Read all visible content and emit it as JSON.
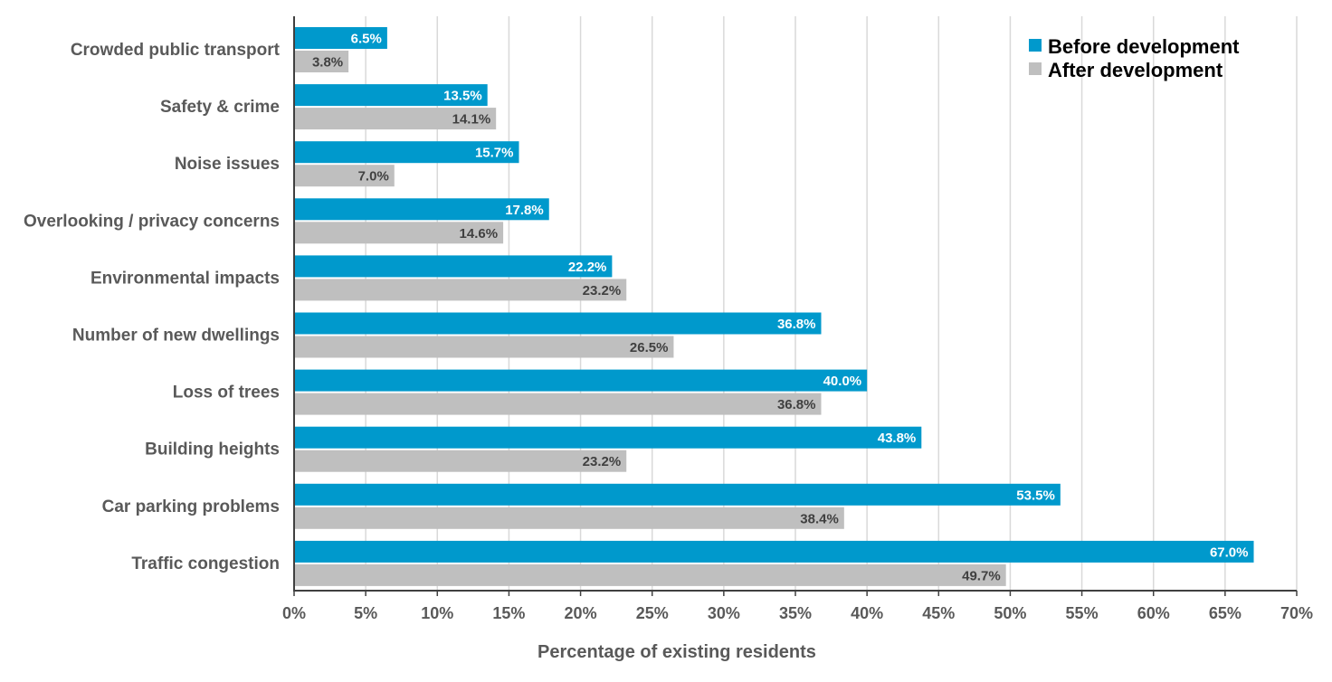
{
  "chart_data": {
    "type": "bar",
    "orientation": "horizontal",
    "title": "",
    "xlabel": "Percentage of existing residents",
    "ylabel": "",
    "xlim": [
      0,
      70
    ],
    "x_ticks": [
      "0%",
      "5%",
      "10%",
      "15%",
      "20%",
      "25%",
      "30%",
      "35%",
      "40%",
      "45%",
      "50%",
      "55%",
      "60%",
      "65%",
      "70%"
    ],
    "grid": "vertical",
    "legend_position": "top-right",
    "categories": [
      "Crowded public transport",
      "Safety & crime",
      "Noise issues",
      "Overlooking / privacy concerns",
      "Environmental impacts",
      "Number of new dwellings",
      "Loss of trees",
      "Building heights",
      "Car parking problems",
      "Traffic congestion"
    ],
    "series": [
      {
        "name": "Before development",
        "color": "#0099CC",
        "label_color": "#ffffff",
        "values": [
          6.5,
          13.5,
          15.7,
          17.8,
          22.2,
          36.8,
          40.0,
          43.8,
          53.5,
          67.0
        ],
        "labels": [
          "6.5%",
          "13.5%",
          "15.7%",
          "17.8%",
          "22.2%",
          "36.8%",
          "40.0%",
          "43.8%",
          "53.5%",
          "67.0%"
        ]
      },
      {
        "name": "After development",
        "color": "#BFBFBF",
        "label_color": "#404040",
        "values": [
          3.8,
          14.1,
          7.0,
          14.6,
          23.2,
          26.5,
          36.8,
          23.2,
          38.4,
          49.7
        ],
        "labels": [
          "3.8%",
          "14.1%",
          "7.0%",
          "14.6%",
          "23.2%",
          "26.5%",
          "36.8%",
          "23.2%",
          "38.4%",
          "49.7%"
        ]
      }
    ]
  }
}
